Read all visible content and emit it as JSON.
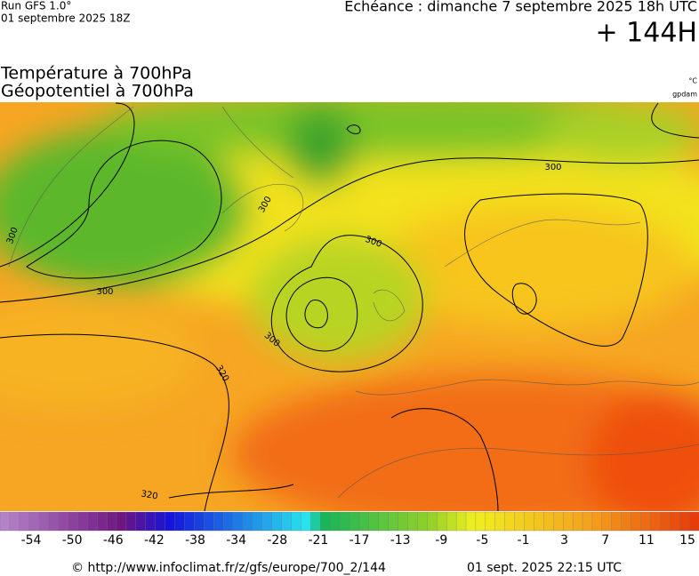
{
  "header": {
    "run": "Run GFS 1.0°",
    "run_date": "01 septembre 2025 18Z",
    "valid": "Echéance : dimanche 7 septembre 2025 18h UTC",
    "lead": "+ 144H"
  },
  "titles": [
    "Température à 700hPa",
    "Géopotentiel à 700hPa"
  ],
  "units": [
    "°C",
    "gpdam"
  ],
  "contour_labels": [
    "300",
    "300",
    "300",
    "300",
    "300",
    "300",
    "320",
    "320"
  ],
  "colorbar_labels": [
    -54,
    -50,
    -46,
    -42,
    -38,
    -34,
    -28,
    -21,
    -17,
    -13,
    -9,
    -5,
    -1,
    3,
    7,
    11,
    15
  ],
  "footer": {
    "source": "© http://www.infoclimat.fr/z/gfs/europe/700_2/144",
    "generated": "01 sept. 2025 22:15 UTC"
  }
}
